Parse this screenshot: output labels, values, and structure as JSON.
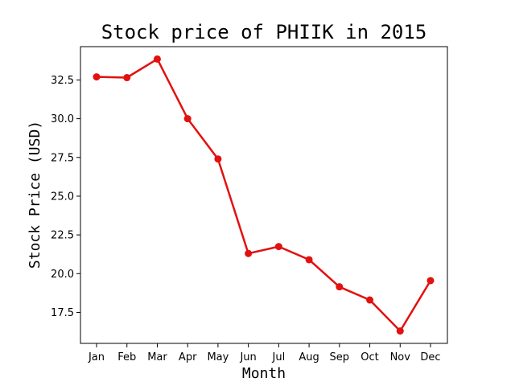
{
  "chart_data": {
    "type": "line",
    "title": "Stock price of PHIIK in 2015",
    "xlabel": "Month",
    "ylabel": "Stock Price (USD)",
    "categories": [
      "Jan",
      "Feb",
      "Mar",
      "Apr",
      "May",
      "Jun",
      "Jul",
      "Aug",
      "Sep",
      "Oct",
      "Nov",
      "Dec"
    ],
    "values": [
      32.7,
      32.65,
      33.85,
      30.0,
      27.4,
      21.3,
      21.75,
      20.9,
      19.15,
      18.3,
      16.3,
      19.55
    ],
    "ylim": [
      15.5,
      34.65
    ],
    "yticks": [
      "17.5",
      "20.0",
      "22.5",
      "25.0",
      "27.5",
      "30.0",
      "32.5"
    ],
    "color": "#e31010",
    "grid": false
  }
}
